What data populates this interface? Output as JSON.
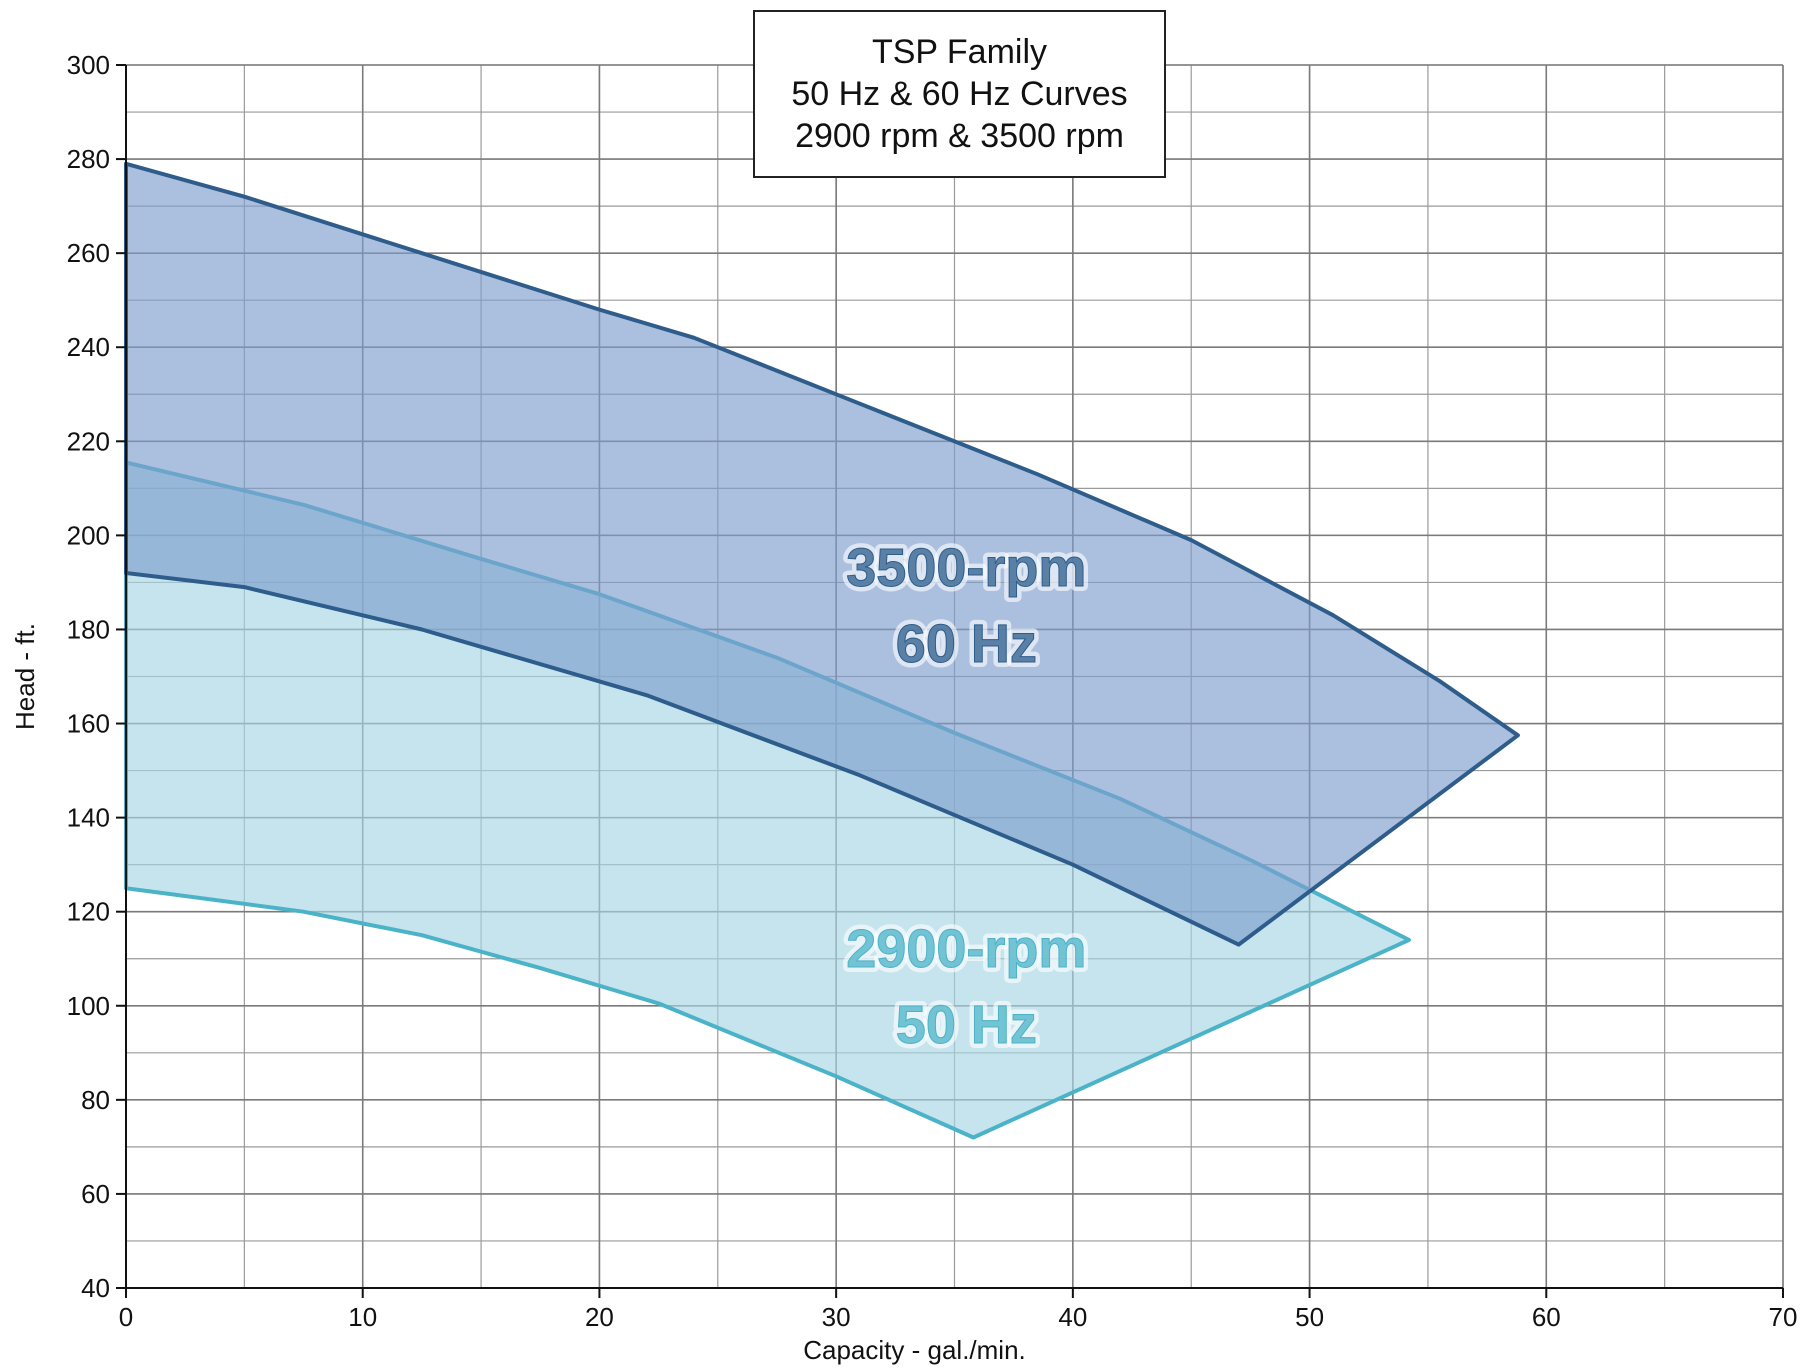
{
  "chart_data": {
    "type": "area",
    "title": [
      "TSP Family",
      "50 Hz & 60 Hz Curves",
      "2900 rpm & 3500 rpm"
    ],
    "xlabel": "Capacity - gal./min.",
    "ylabel": "Head - ft.",
    "xlim": [
      0,
      70
    ],
    "ylim": [
      40,
      300
    ],
    "x_ticks": [
      0,
      10,
      20,
      30,
      40,
      50,
      60,
      70
    ],
    "y_ticks": [
      40,
      60,
      80,
      100,
      120,
      140,
      160,
      180,
      200,
      220,
      240,
      260,
      280,
      300
    ],
    "grid": true,
    "series": [
      {
        "name": "2900-rpm 50 Hz",
        "label_lines": [
          "2900-rpm",
          "50 Hz"
        ],
        "label_position": [
          35.5,
          104
        ],
        "color": "#4bb3c8",
        "fill": "#a8d6e3",
        "upper_curve": [
          [
            0,
            215.5
          ],
          [
            7.5,
            206.5
          ],
          [
            15,
            195
          ],
          [
            20,
            187.5
          ],
          [
            27.5,
            174
          ],
          [
            35,
            158
          ],
          [
            42,
            144
          ],
          [
            47.5,
            131
          ],
          [
            54.2,
            114
          ]
        ],
        "lower_curve": [
          [
            0,
            125
          ],
          [
            7.5,
            120
          ],
          [
            12.5,
            115
          ],
          [
            17.5,
            108
          ],
          [
            22.5,
            100.5
          ],
          [
            30,
            85
          ],
          [
            35.8,
            72
          ]
        ]
      },
      {
        "name": "3500-rpm 60 Hz",
        "label_lines": [
          "3500-rpm",
          "60 Hz"
        ],
        "label_position": [
          35.5,
          185
        ],
        "color": "#2e5d8c",
        "fill": "#7e9ecc",
        "upper_curve": [
          [
            0,
            279
          ],
          [
            5,
            272
          ],
          [
            12.5,
            260
          ],
          [
            20,
            248
          ],
          [
            24,
            242
          ],
          [
            31,
            228
          ],
          [
            38.5,
            213
          ],
          [
            45,
            199
          ],
          [
            51,
            183
          ],
          [
            55.5,
            169
          ],
          [
            58.8,
            157.5
          ]
        ],
        "lower_curve": [
          [
            0,
            192
          ],
          [
            5,
            189
          ],
          [
            12.5,
            180
          ],
          [
            22,
            166
          ],
          [
            31,
            149
          ],
          [
            40,
            130
          ],
          [
            47,
            113
          ]
        ]
      }
    ]
  }
}
